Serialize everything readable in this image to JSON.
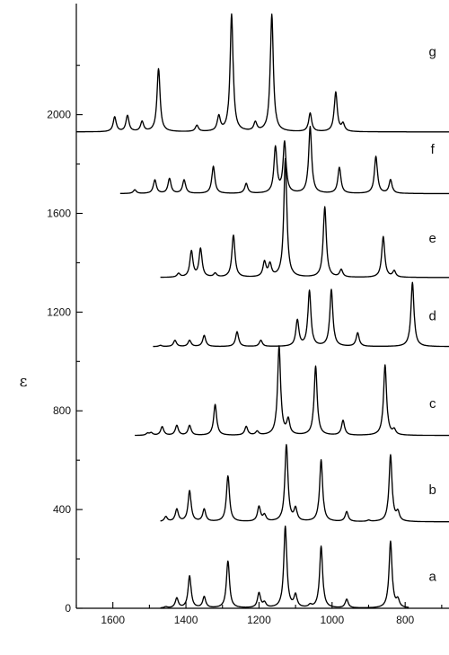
{
  "chart_data": {
    "type": "line",
    "title": "",
    "xlabel": "",
    "ylabel": "ε",
    "x_reversed": true,
    "xlim": [
      1700,
      680
    ],
    "ylim": [
      0,
      2450
    ],
    "x_ticks": [
      1600,
      1400,
      1200,
      1000,
      800
    ],
    "y_ticks": [
      0,
      400,
      800,
      1200,
      1600,
      2000
    ],
    "peak_width": 5,
    "series": [
      {
        "name": "a",
        "baseline": 0,
        "x_start": 1470,
        "x_end": 790,
        "label_x": 725,
        "label_y": 130,
        "peaks": [
          [
            1455,
            5
          ],
          [
            1425,
            40
          ],
          [
            1390,
            130
          ],
          [
            1350,
            45
          ],
          [
            1285,
            190
          ],
          [
            1200,
            60
          ],
          [
            1185,
            20
          ],
          [
            1128,
            330
          ],
          [
            1100,
            50
          ],
          [
            1060,
            10
          ],
          [
            1030,
            250
          ],
          [
            960,
            35
          ],
          [
            840,
            270
          ],
          [
            820,
            30
          ]
        ]
      },
      {
        "name": "b",
        "baseline": 350,
        "x_start": 1470,
        "x_end": 680,
        "label_x": 725,
        "label_y": 480,
        "peaks": [
          [
            1455,
            20
          ],
          [
            1425,
            50
          ],
          [
            1390,
            125
          ],
          [
            1350,
            50
          ],
          [
            1285,
            185
          ],
          [
            1200,
            60
          ],
          [
            1185,
            25
          ],
          [
            1125,
            310
          ],
          [
            1100,
            50
          ],
          [
            1030,
            250
          ],
          [
            960,
            40
          ],
          [
            900,
            5
          ],
          [
            840,
            270
          ],
          [
            820,
            35
          ]
        ]
      },
      {
        "name": "c",
        "baseline": 700,
        "x_start": 1540,
        "x_end": 680,
        "label_x": 725,
        "label_y": 830,
        "peaks": [
          [
            1505,
            8
          ],
          [
            1495,
            10
          ],
          [
            1465,
            35
          ],
          [
            1425,
            40
          ],
          [
            1390,
            40
          ],
          [
            1320,
            125
          ],
          [
            1235,
            35
          ],
          [
            1205,
            15
          ],
          [
            1145,
            360
          ],
          [
            1120,
            60
          ],
          [
            1045,
            280
          ],
          [
            970,
            60
          ],
          [
            855,
            285
          ],
          [
            830,
            20
          ]
        ]
      },
      {
        "name": "d",
        "baseline": 1060,
        "x_start": 1490,
        "x_end": 680,
        "label_x": 725,
        "label_y": 1185,
        "peaks": [
          [
            1470,
            5
          ],
          [
            1430,
            25
          ],
          [
            1390,
            25
          ],
          [
            1350,
            45
          ],
          [
            1260,
            60
          ],
          [
            1195,
            25
          ],
          [
            1095,
            105
          ],
          [
            1062,
            225
          ],
          [
            1002,
            230
          ],
          [
            930,
            55
          ],
          [
            780,
            260
          ]
        ]
      },
      {
        "name": "e",
        "baseline": 1340,
        "x_start": 1470,
        "x_end": 680,
        "label_x": 725,
        "label_y": 1500,
        "peaks": [
          [
            1420,
            15
          ],
          [
            1385,
            105
          ],
          [
            1360,
            115
          ],
          [
            1320,
            15
          ],
          [
            1270,
            170
          ],
          [
            1185,
            60
          ],
          [
            1170,
            50
          ],
          [
            1128,
            480
          ],
          [
            1020,
            285
          ],
          [
            975,
            30
          ],
          [
            860,
            165
          ],
          [
            830,
            25
          ]
        ]
      },
      {
        "name": "f",
        "baseline": 1680,
        "x_start": 1580,
        "x_end": 680,
        "label_x": 725,
        "label_y": 1860,
        "peaks": [
          [
            1540,
            15
          ],
          [
            1485,
            55
          ],
          [
            1445,
            60
          ],
          [
            1405,
            55
          ],
          [
            1325,
            110
          ],
          [
            1235,
            40
          ],
          [
            1155,
            185
          ],
          [
            1130,
            205
          ],
          [
            1060,
            270
          ],
          [
            980,
            105
          ],
          [
            880,
            150
          ],
          [
            840,
            55
          ]
        ]
      },
      {
        "name": "g",
        "baseline": 1930,
        "x_start": 1700,
        "x_end": 680,
        "label_x": 725,
        "label_y": 2255,
        "peaks": [
          [
            1595,
            60
          ],
          [
            1560,
            65
          ],
          [
            1520,
            40
          ],
          [
            1475,
            255
          ],
          [
            1370,
            25
          ],
          [
            1310,
            60
          ],
          [
            1275,
            475
          ],
          [
            1210,
            35
          ],
          [
            1165,
            475
          ],
          [
            1060,
            75
          ],
          [
            990,
            160
          ],
          [
            970,
            30
          ]
        ]
      }
    ]
  }
}
